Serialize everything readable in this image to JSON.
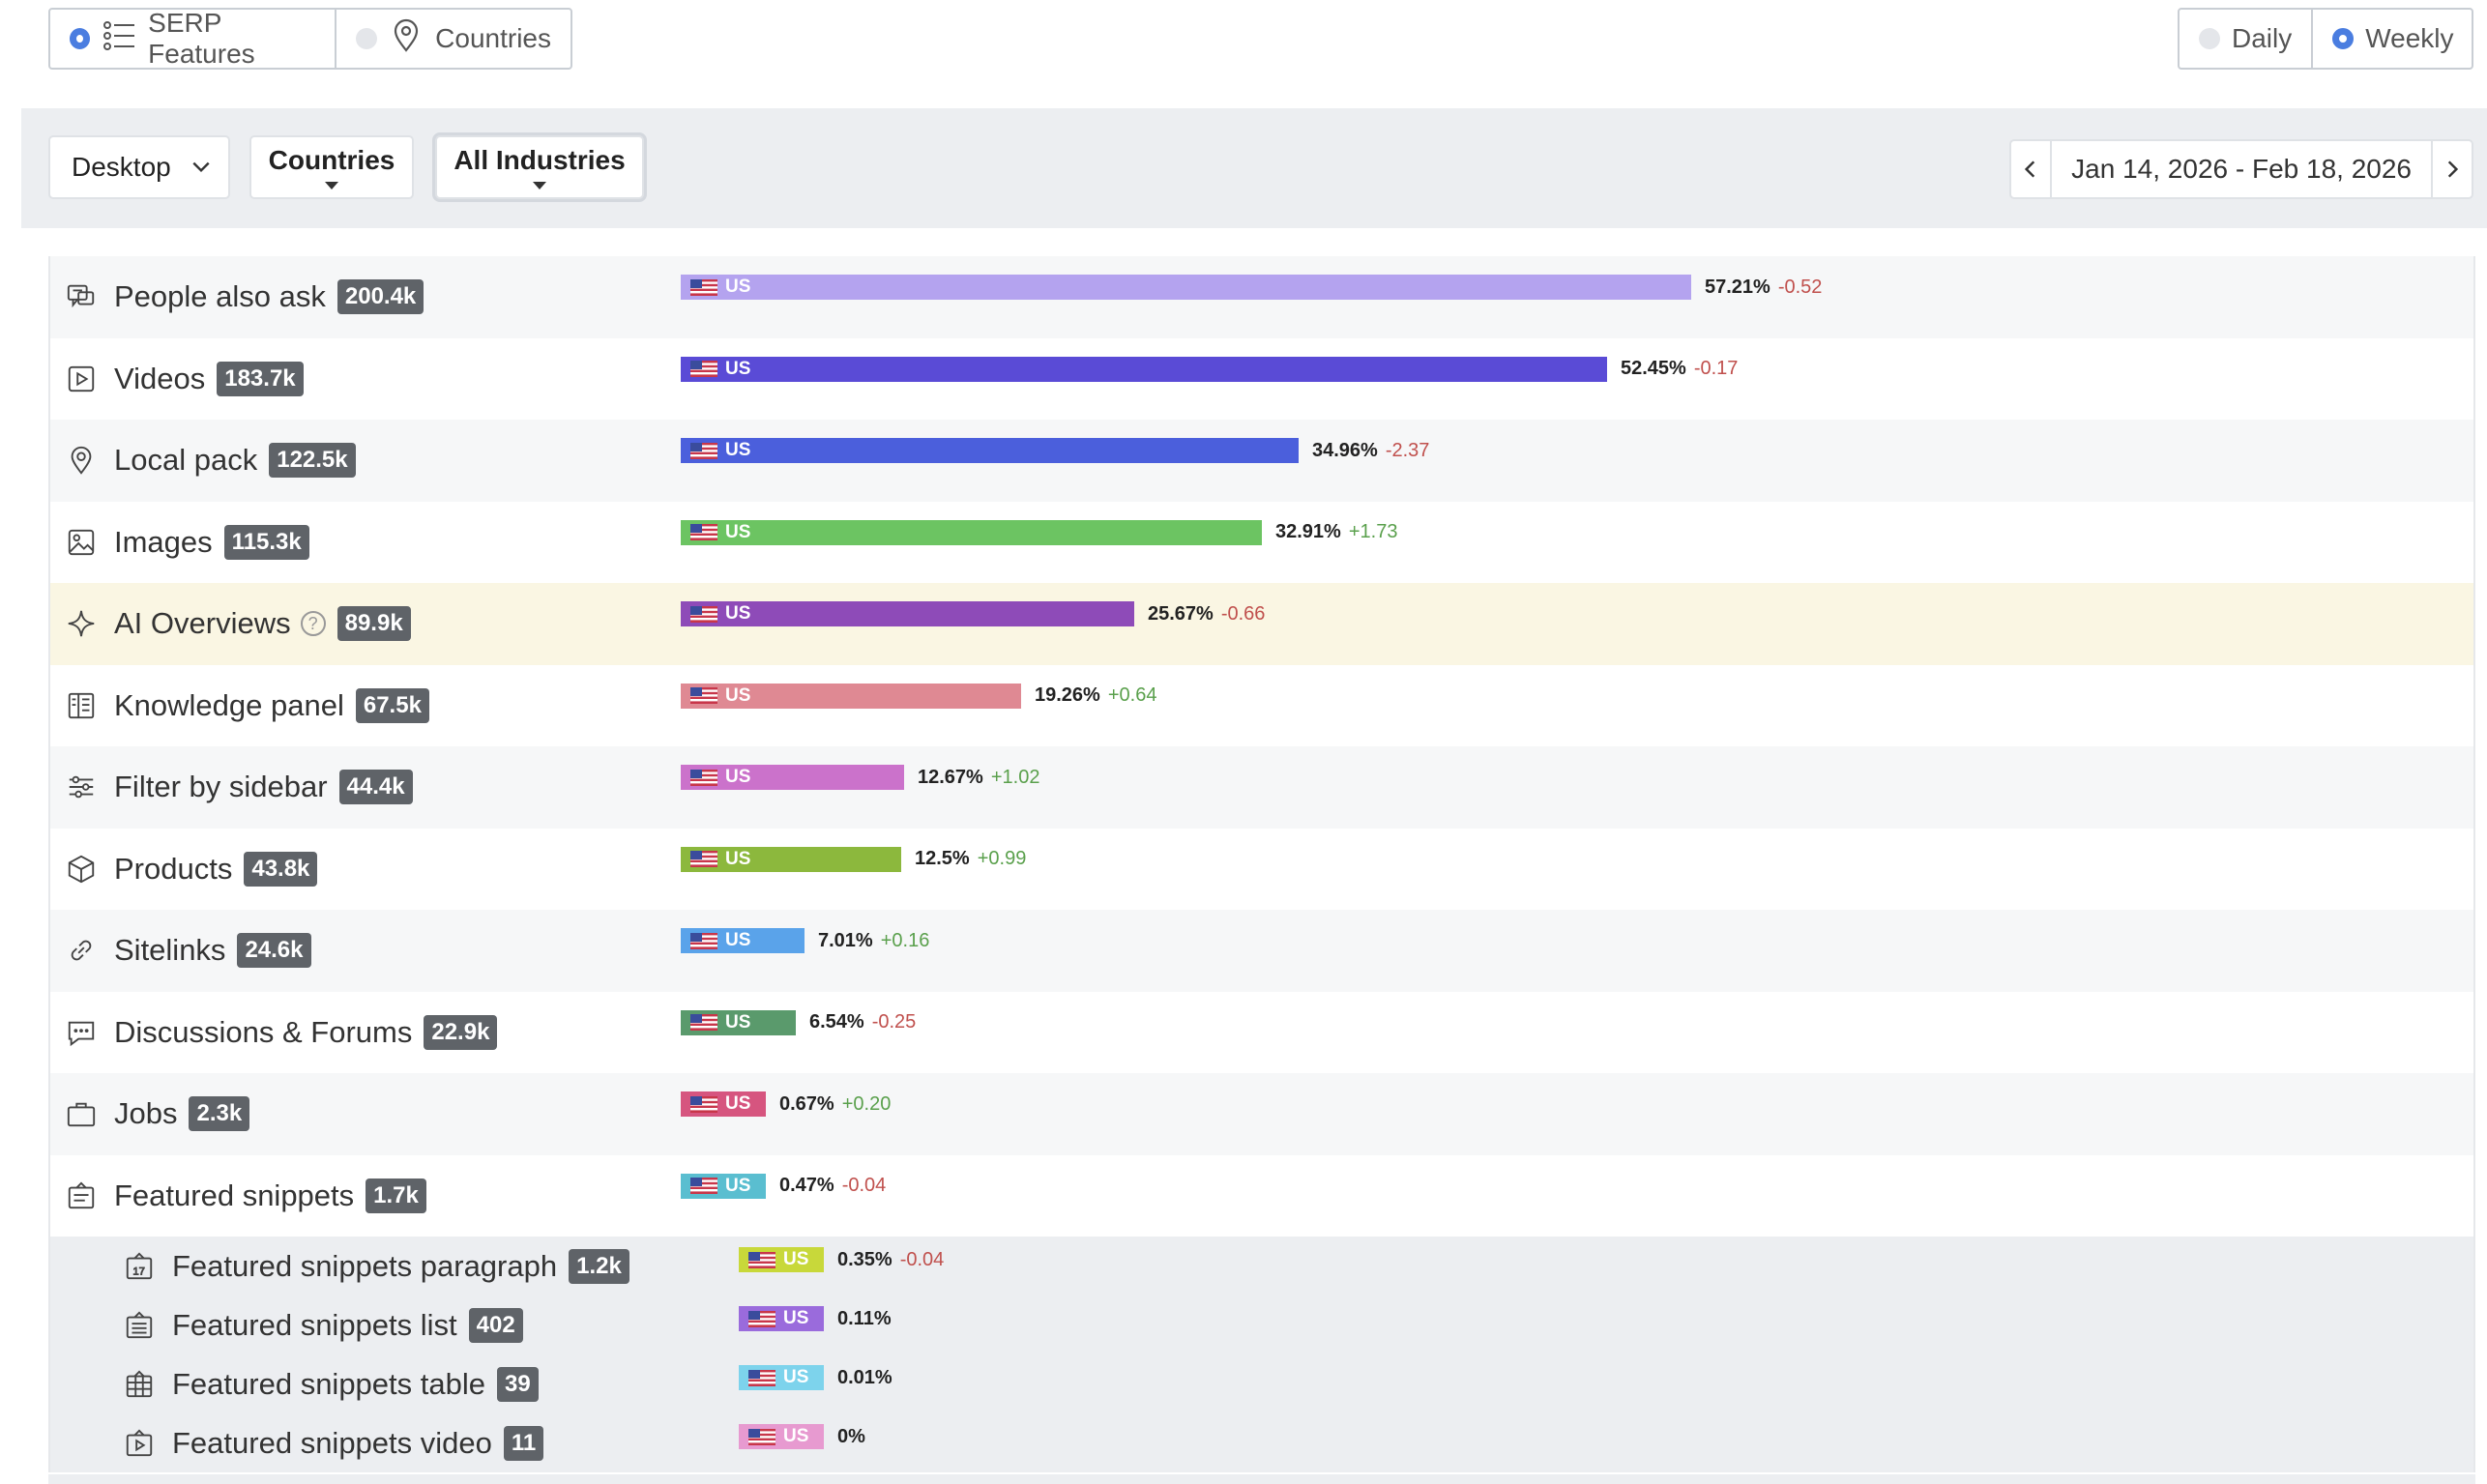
{
  "view_toggle": {
    "options": [
      {
        "label": "SERP Features",
        "selected": true
      },
      {
        "label": "Countries",
        "selected": false
      }
    ]
  },
  "period_toggle": {
    "options": [
      {
        "label": "Daily",
        "selected": false
      },
      {
        "label": "Weekly",
        "selected": true
      }
    ]
  },
  "filters": {
    "device": "Desktop",
    "countries": "Countries",
    "industries": "All Industries",
    "date_range": "Jan 14, 2026 - Feb 18, 2026"
  },
  "features": [
    {
      "name": "People also ask",
      "count": "200.4k",
      "icon": "people-also-ask-icon",
      "country": "US",
      "pct": "57.21%",
      "pct_value": 57.21,
      "change": "-0.52",
      "color": "#b4a3ef"
    },
    {
      "name": "Videos",
      "count": "183.7k",
      "icon": "video-icon",
      "country": "US",
      "pct": "52.45%",
      "pct_value": 52.45,
      "change": "-0.17",
      "color": "#5a4bd6"
    },
    {
      "name": "Local pack",
      "count": "122.5k",
      "icon": "location-pin-icon",
      "country": "US",
      "pct": "34.96%",
      "pct_value": 34.96,
      "change": "-2.37",
      "color": "#4b5fdc"
    },
    {
      "name": "Images",
      "count": "115.3k",
      "icon": "image-icon",
      "country": "US",
      "pct": "32.91%",
      "pct_value": 32.91,
      "change": "+1.73",
      "color": "#6cc462"
    },
    {
      "name": "AI Overviews",
      "count": "89.9k",
      "icon": "sparkle-icon",
      "country": "US",
      "pct": "25.67%",
      "pct_value": 25.67,
      "change": "-0.66",
      "color": "#8e4bb8",
      "help": "?"
    },
    {
      "name": "Knowledge panel",
      "count": "67.5k",
      "icon": "knowledge-panel-icon",
      "country": "US",
      "pct": "19.26%",
      "pct_value": 19.26,
      "change": "+0.64",
      "color": "#df8993"
    },
    {
      "name": "Filter by sidebar",
      "count": "44.4k",
      "icon": "filter-sliders-icon",
      "country": "US",
      "pct": "12.67%",
      "pct_value": 12.67,
      "change": "+1.02",
      "color": "#cb72cb"
    },
    {
      "name": "Products",
      "count": "43.8k",
      "icon": "box-icon",
      "country": "US",
      "pct": "12.5%",
      "pct_value": 12.5,
      "change": "+0.99",
      "color": "#8cb83d"
    },
    {
      "name": "Sitelinks",
      "count": "24.6k",
      "icon": "link-icon",
      "country": "US",
      "pct": "7.01%",
      "pct_value": 7.01,
      "change": "+0.16",
      "color": "#5aa3ea"
    },
    {
      "name": "Discussions & Forums",
      "count": "22.9k",
      "icon": "chat-icon",
      "country": "US",
      "pct": "6.54%",
      "pct_value": 6.54,
      "change": "-0.25",
      "color": "#5a9a6c"
    },
    {
      "name": "Jobs",
      "count": "2.3k",
      "icon": "briefcase-icon",
      "country": "US",
      "pct": "0.67%",
      "pct_value": 0.67,
      "change": "+0.20",
      "color": "#d6557f"
    },
    {
      "name": "Featured snippets",
      "count": "1.7k",
      "icon": "featured-snippet-icon",
      "country": "US",
      "pct": "0.47%",
      "pct_value": 0.47,
      "change": "-0.04",
      "color": "#5abed0"
    }
  ],
  "sub_features": [
    {
      "name": "Featured snippets paragraph",
      "count": "1.2k",
      "icon": "featured-snippet-paragraph-icon",
      "country": "US",
      "pct": "0.35%",
      "pct_value": 0.35,
      "change": "-0.04",
      "color": "#c8d83a"
    },
    {
      "name": "Featured snippets list",
      "count": "402",
      "icon": "featured-snippet-list-icon",
      "country": "US",
      "pct": "0.11%",
      "pct_value": 0.11,
      "change": "",
      "color": "#9a6bdc"
    },
    {
      "name": "Featured snippets table",
      "count": "39",
      "icon": "featured-snippet-table-icon",
      "country": "US",
      "pct": "0.01%",
      "pct_value": 0.01,
      "change": "",
      "color": "#7dd3ec"
    },
    {
      "name": "Featured snippets video",
      "count": "11",
      "icon": "featured-snippet-video-icon",
      "country": "US",
      "pct": "0%",
      "pct_value": 0,
      "change": "",
      "color": "#e79ad0"
    }
  ]
}
